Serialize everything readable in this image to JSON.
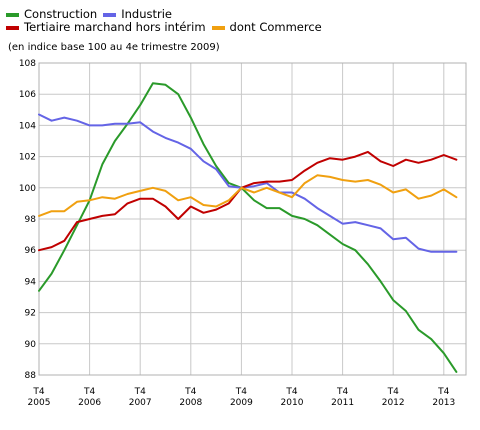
{
  "chart_data": {
    "type": "line",
    "title": "",
    "subtitle": "(en indice base 100 au 4e trimestre 2009)",
    "xlabel": "",
    "ylabel": "",
    "ylim": [
      88,
      108
    ],
    "y_ticks": [
      88,
      90,
      92,
      94,
      96,
      98,
      100,
      102,
      104,
      106,
      108
    ],
    "x_tick_labels": [
      {
        "top": "T4",
        "bottom": "2005"
      },
      {
        "top": "T4",
        "bottom": "2006"
      },
      {
        "top": "T4",
        "bottom": "2007"
      },
      {
        "top": "T4",
        "bottom": "2008"
      },
      {
        "top": "T4",
        "bottom": "2009"
      },
      {
        "top": "T4",
        "bottom": "2010"
      },
      {
        "top": "T4",
        "bottom": "2011"
      },
      {
        "top": "T4",
        "bottom": "2012"
      },
      {
        "top": "T4",
        "bottom": "2013"
      }
    ],
    "grid": true,
    "legend_position": "top-left",
    "x_start": "T4 2005",
    "x_end": "T3 2014",
    "series": [
      {
        "name": "Construction",
        "color": "#2a9a2a",
        "values": [
          93.4,
          94.5,
          96.0,
          97.6,
          99.2,
          101.5,
          103.0,
          104.1,
          105.3,
          106.7,
          106.6,
          106.0,
          104.5,
          102.8,
          101.4,
          100.3,
          100.0,
          99.2,
          98.7,
          98.7,
          98.2,
          98.0,
          97.6,
          97.0,
          96.4,
          96.0,
          95.1,
          94.0,
          92.8,
          92.1,
          90.9,
          90.3,
          89.4,
          88.2
        ]
      },
      {
        "name": "Industrie",
        "color": "#6464e6",
        "values": [
          104.7,
          104.3,
          104.5,
          104.3,
          104.0,
          104.0,
          104.1,
          104.1,
          104.2,
          103.6,
          103.2,
          102.9,
          102.5,
          101.7,
          101.2,
          100.1,
          100.0,
          100.1,
          100.3,
          99.7,
          99.7,
          99.3,
          98.7,
          98.2,
          97.7,
          97.8,
          97.6,
          97.4,
          96.7,
          96.8,
          96.1,
          95.9,
          95.9,
          95.9
        ]
      },
      {
        "name": "Tertiaire marchand hors intérim",
        "color": "#c00000",
        "values": [
          96.0,
          96.2,
          96.6,
          97.8,
          98.0,
          98.2,
          98.3,
          99.0,
          99.3,
          99.3,
          98.8,
          98.0,
          98.8,
          98.4,
          98.6,
          99.0,
          100.0,
          100.3,
          100.4,
          100.4,
          100.5,
          101.1,
          101.6,
          101.9,
          101.8,
          102.0,
          102.3,
          101.7,
          101.4,
          101.8,
          101.6,
          101.8,
          102.1,
          101.8
        ]
      },
      {
        "name": "dont Commerce",
        "color": "#f0a010",
        "values": [
          98.2,
          98.5,
          98.5,
          99.1,
          99.2,
          99.4,
          99.3,
          99.6,
          99.8,
          100.0,
          99.8,
          99.2,
          99.4,
          98.9,
          98.8,
          99.2,
          100.0,
          99.7,
          100.0,
          99.7,
          99.4,
          100.3,
          100.8,
          100.7,
          100.5,
          100.4,
          100.5,
          100.2,
          99.7,
          99.9,
          99.3,
          99.5,
          99.9,
          99.4
        ]
      }
    ]
  }
}
